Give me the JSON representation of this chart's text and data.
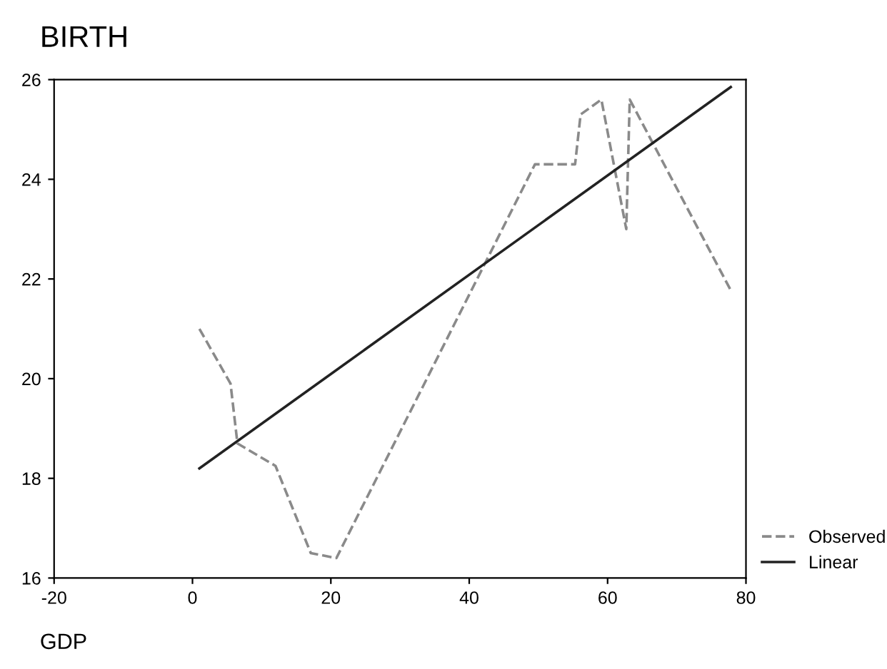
{
  "chart_data": {
    "type": "line",
    "title": "BIRTH",
    "xlabel": "GDP",
    "xlim": [
      -20,
      80
    ],
    "xticks": [
      -20,
      0,
      20,
      40,
      60,
      80
    ],
    "ylim": [
      16,
      26
    ],
    "yticks": [
      16,
      18,
      20,
      22,
      24,
      26
    ],
    "grid": false,
    "legend": "bottom right",
    "marker": "none",
    "series": [
      {
        "name": "Observed",
        "color": "#8a8a8a",
        "line_style": "dashed",
        "x": [
          1.0,
          5.5,
          6.5,
          12.0,
          17.1,
          20.8,
          49.5,
          55.3,
          56.1,
          59.1,
          62.7,
          63.2,
          77.7
        ],
        "values": [
          21.0,
          19.9,
          18.7,
          18.25,
          16.5,
          16.4,
          24.3,
          24.3,
          25.3,
          25.6,
          23.0,
          25.6,
          21.8
        ]
      },
      {
        "name": "Linear",
        "color": "#222222",
        "line_style": "solid",
        "x": [
          1.0,
          77.8
        ],
        "values": [
          18.2,
          25.85
        ]
      }
    ]
  }
}
